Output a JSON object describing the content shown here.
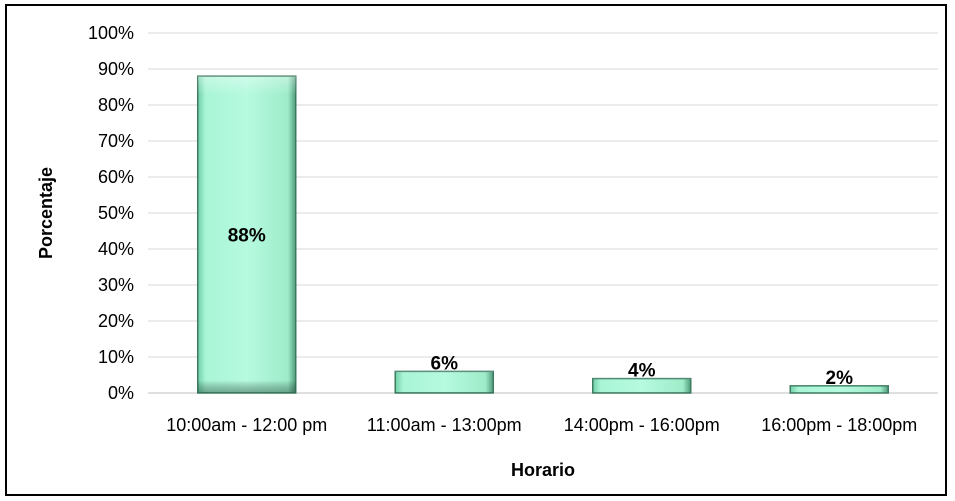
{
  "chart_data": {
    "type": "bar",
    "categories": [
      "10:00am - 12:00 pm",
      "11:00am - 13:00pm",
      "14:00pm - 16:00pm",
      "16:00pm - 18:00pm"
    ],
    "values": [
      88,
      6,
      4,
      2
    ],
    "data_labels": [
      "88%",
      "6%",
      "4%",
      "2%"
    ],
    "xlabel": "Horario",
    "ylabel": "Porcentaje",
    "ylim": [
      0,
      100
    ],
    "yticks": [
      "0%",
      "10%",
      "20%",
      "30%",
      "40%",
      "50%",
      "60%",
      "70%",
      "80%",
      "90%",
      "100%"
    ],
    "grid": true,
    "legend": "none",
    "colors": {
      "bar_fill_light": "#b6fae0",
      "bar_fill": "#92f0c8",
      "bar_edge_dark": "#3e7c62",
      "grid": "#d9d9d9",
      "frame": "#000000"
    }
  }
}
